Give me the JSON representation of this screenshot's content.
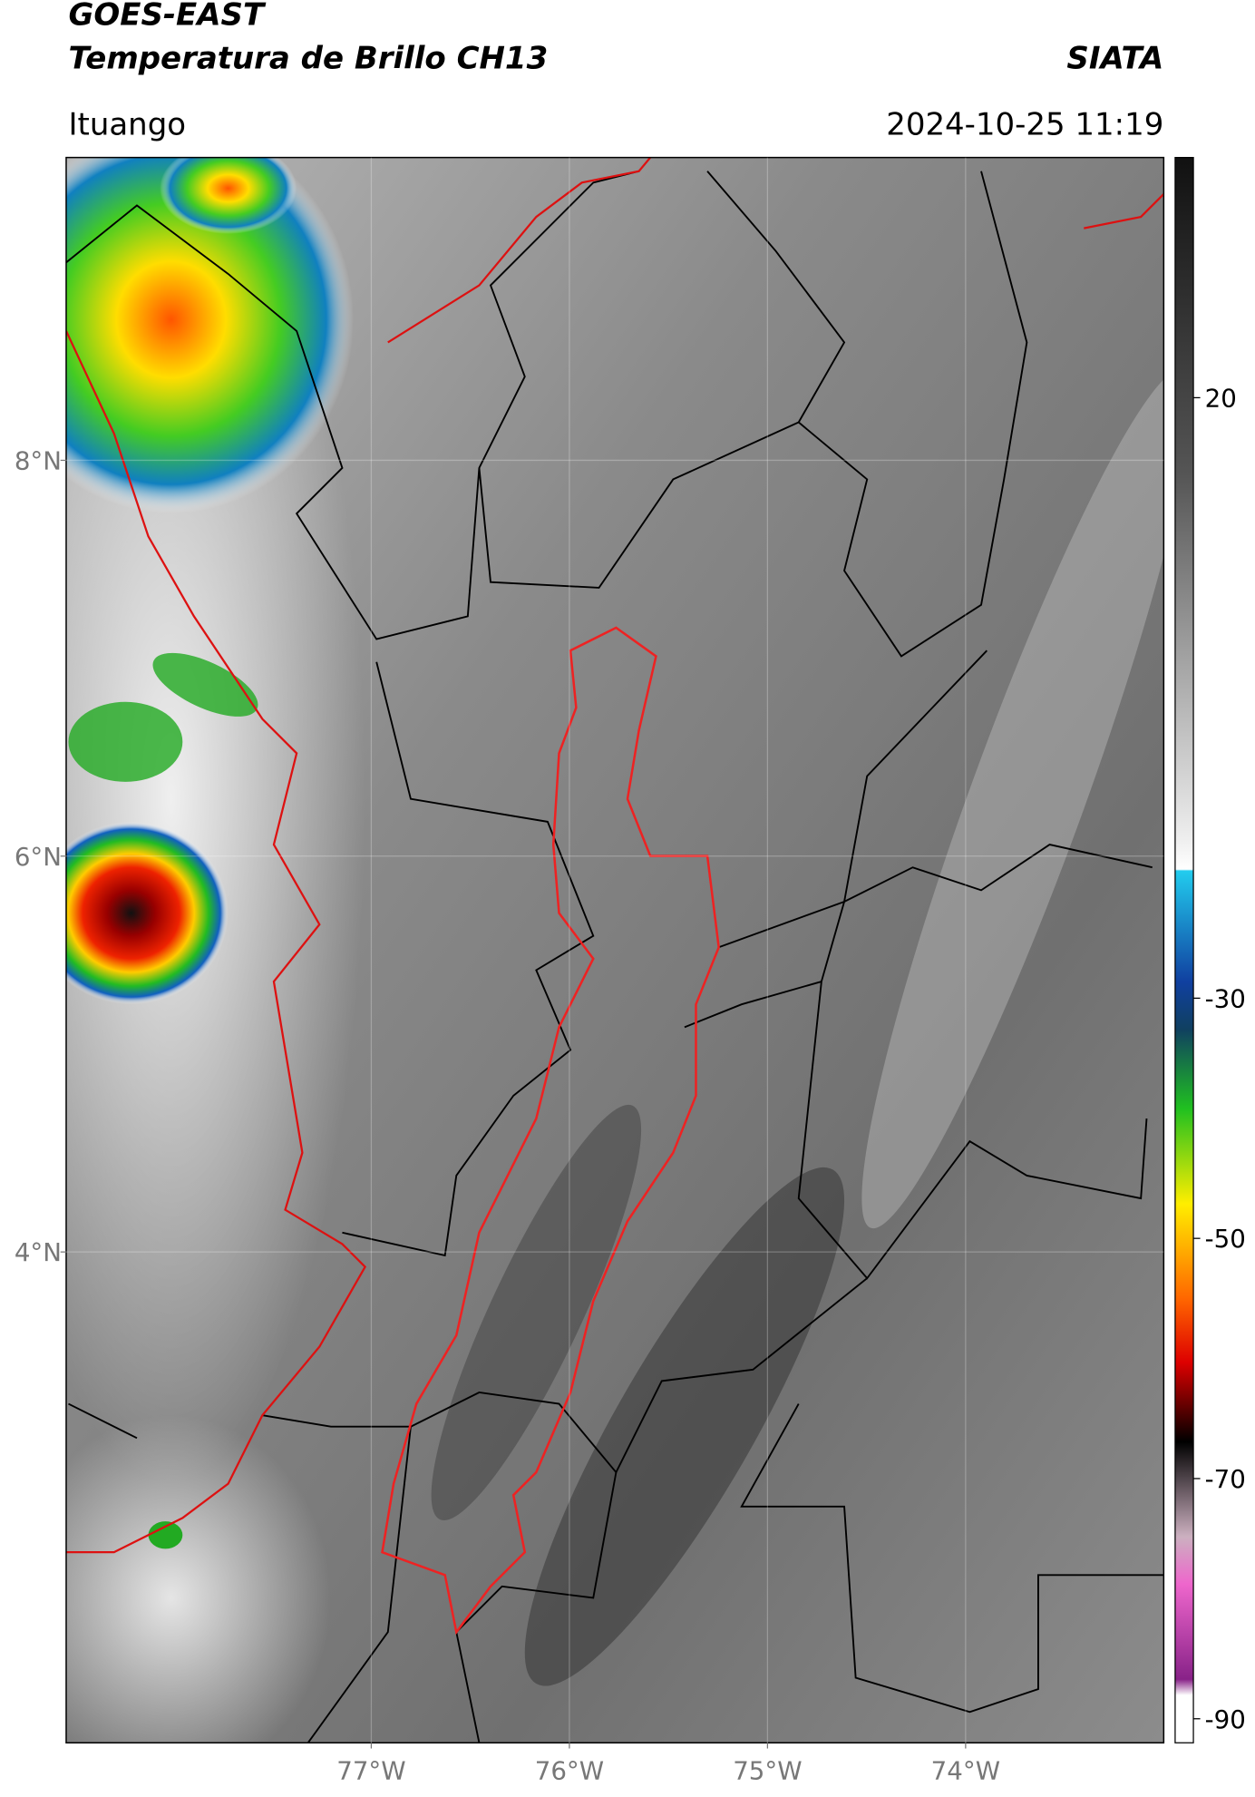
{
  "header": {
    "title": "GOES-EAST",
    "subtitle": "Temperatura de Brillo CH13",
    "brand": "SIATA",
    "location": "Ituango",
    "timestamp": "2024-10-25 11:19"
  },
  "map": {
    "latlim": [
      1.52,
      9.53
    ],
    "lonlim": [
      -78.54,
      -73.0
    ],
    "latticks": [
      {
        "value": 8,
        "label": "8°N"
      },
      {
        "value": 6,
        "label": "6°N"
      },
      {
        "value": 4,
        "label": "4°N"
      }
    ],
    "lonticks": [
      {
        "value": -77,
        "label": "77°W"
      },
      {
        "value": -76,
        "label": "76°W"
      },
      {
        "value": -75,
        "label": "75°W"
      },
      {
        "value": -74,
        "label": "74°W"
      }
    ],
    "grid": true
  },
  "colorbar": {
    "lim": [
      -92,
      40
    ],
    "ticks": [
      20,
      -30,
      -50,
      -70,
      -90
    ]
  }
}
